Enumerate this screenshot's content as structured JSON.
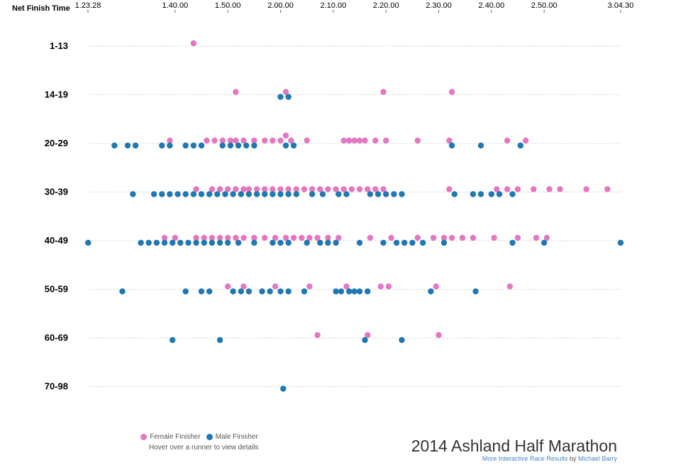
{
  "chart_data": {
    "type": "scatter",
    "title": "2014 Ashland Half Marathon",
    "xlabel": "Net Finish Time",
    "x_ticks": [
      {
        "label": "1.23.28",
        "value": 83.47
      },
      {
        "label": "1.40.00",
        "value": 100
      },
      {
        "label": "1.50.00",
        "value": 110
      },
      {
        "label": "2.00.00",
        "value": 120
      },
      {
        "label": "2.10.00",
        "value": 130
      },
      {
        "label": "2.20.00",
        "value": 140
      },
      {
        "label": "2.30.00",
        "value": 150
      },
      {
        "label": "2.40.00",
        "value": 160
      },
      {
        "label": "2.50.00",
        "value": 170
      },
      {
        "label": "3.04.30",
        "value": 184.5
      }
    ],
    "x_unit": "minutes",
    "xlim": [
      83.47,
      184.5
    ],
    "categories": [
      "1-13",
      "14-19",
      "20-29",
      "30-39",
      "40-49",
      "50-59",
      "60-69",
      "70-98"
    ],
    "series": [
      {
        "name": "Female Finisher",
        "color": "#e377c2",
        "points": [
          {
            "group": "1-13",
            "x": 103.5
          },
          {
            "group": "14-19",
            "x": 111.5
          },
          {
            "group": "14-19",
            "x": 121
          },
          {
            "group": "14-19",
            "x": 139.5
          },
          {
            "group": "14-19",
            "x": 152.5
          },
          {
            "group": "20-29",
            "x": 99
          },
          {
            "group": "20-29",
            "x": 106
          },
          {
            "group": "20-29",
            "x": 107.5
          },
          {
            "group": "20-29",
            "x": 109
          },
          {
            "group": "20-29",
            "x": 110.5
          },
          {
            "group": "20-29",
            "x": 111.5
          },
          {
            "group": "20-29",
            "x": 113
          },
          {
            "group": "20-29",
            "x": 115
          },
          {
            "group": "20-29",
            "x": 117
          },
          {
            "group": "20-29",
            "x": 118.5
          },
          {
            "group": "20-29",
            "x": 120
          },
          {
            "group": "20-29",
            "x": 121
          },
          {
            "group": "20-29",
            "x": 122
          },
          {
            "group": "20-29",
            "x": 125
          },
          {
            "group": "20-29",
            "x": 132
          },
          {
            "group": "20-29",
            "x": 133
          },
          {
            "group": "20-29",
            "x": 134
          },
          {
            "group": "20-29",
            "x": 135
          },
          {
            "group": "20-29",
            "x": 136
          },
          {
            "group": "20-29",
            "x": 138
          },
          {
            "group": "20-29",
            "x": 140
          },
          {
            "group": "20-29",
            "x": 146
          },
          {
            "group": "20-29",
            "x": 152
          },
          {
            "group": "20-29",
            "x": 163
          },
          {
            "group": "20-29",
            "x": 166.5
          },
          {
            "group": "30-39",
            "x": 104
          },
          {
            "group": "30-39",
            "x": 107
          },
          {
            "group": "30-39",
            "x": 108.5
          },
          {
            "group": "30-39",
            "x": 110
          },
          {
            "group": "30-39",
            "x": 111.5
          },
          {
            "group": "30-39",
            "x": 113
          },
          {
            "group": "30-39",
            "x": 114
          },
          {
            "group": "30-39",
            "x": 115.5
          },
          {
            "group": "30-39",
            "x": 117
          },
          {
            "group": "30-39",
            "x": 118.5
          },
          {
            "group": "30-39",
            "x": 120
          },
          {
            "group": "30-39",
            "x": 121.5
          },
          {
            "group": "30-39",
            "x": 123
          },
          {
            "group": "30-39",
            "x": 124.5
          },
          {
            "group": "30-39",
            "x": 126
          },
          {
            "group": "30-39",
            "x": 127.5
          },
          {
            "group": "30-39",
            "x": 129
          },
          {
            "group": "30-39",
            "x": 130.5
          },
          {
            "group": "30-39",
            "x": 132
          },
          {
            "group": "30-39",
            "x": 133.5
          },
          {
            "group": "30-39",
            "x": 135
          },
          {
            "group": "30-39",
            "x": 136.5
          },
          {
            "group": "30-39",
            "x": 138
          },
          {
            "group": "30-39",
            "x": 139.5
          },
          {
            "group": "30-39",
            "x": 152
          },
          {
            "group": "30-39",
            "x": 161
          },
          {
            "group": "30-39",
            "x": 163
          },
          {
            "group": "30-39",
            "x": 165
          },
          {
            "group": "30-39",
            "x": 168
          },
          {
            "group": "30-39",
            "x": 171
          },
          {
            "group": "30-39",
            "x": 173
          },
          {
            "group": "30-39",
            "x": 178
          },
          {
            "group": "30-39",
            "x": 182
          },
          {
            "group": "40-49",
            "x": 98
          },
          {
            "group": "40-49",
            "x": 100
          },
          {
            "group": "40-49",
            "x": 104
          },
          {
            "group": "40-49",
            "x": 105.5
          },
          {
            "group": "40-49",
            "x": 107
          },
          {
            "group": "40-49",
            "x": 108.5
          },
          {
            "group": "40-49",
            "x": 110
          },
          {
            "group": "40-49",
            "x": 111.5
          },
          {
            "group": "40-49",
            "x": 113
          },
          {
            "group": "40-49",
            "x": 115
          },
          {
            "group": "40-49",
            "x": 117
          },
          {
            "group": "40-49",
            "x": 119
          },
          {
            "group": "40-49",
            "x": 121
          },
          {
            "group": "40-49",
            "x": 122.5
          },
          {
            "group": "40-49",
            "x": 124
          },
          {
            "group": "40-49",
            "x": 125.5
          },
          {
            "group": "40-49",
            "x": 127
          },
          {
            "group": "40-49",
            "x": 129
          },
          {
            "group": "40-49",
            "x": 131
          },
          {
            "group": "40-49",
            "x": 137
          },
          {
            "group": "40-49",
            "x": 141
          },
          {
            "group": "40-49",
            "x": 146
          },
          {
            "group": "40-49",
            "x": 149
          },
          {
            "group": "40-49",
            "x": 151
          },
          {
            "group": "40-49",
            "x": 152.5
          },
          {
            "group": "40-49",
            "x": 154.5
          },
          {
            "group": "40-49",
            "x": 156.5
          },
          {
            "group": "40-49",
            "x": 160.5
          },
          {
            "group": "40-49",
            "x": 165
          },
          {
            "group": "40-49",
            "x": 168.5
          },
          {
            "group": "40-49",
            "x": 170.5
          },
          {
            "group": "50-59",
            "x": 110
          },
          {
            "group": "50-59",
            "x": 113
          },
          {
            "group": "50-59",
            "x": 119
          },
          {
            "group": "50-59",
            "x": 125.5
          },
          {
            "group": "50-59",
            "x": 132.5
          },
          {
            "group": "50-59",
            "x": 139
          },
          {
            "group": "50-59",
            "x": 140.5
          },
          {
            "group": "50-59",
            "x": 149.5
          },
          {
            "group": "50-59",
            "x": 163.5
          },
          {
            "group": "60-69",
            "x": 127
          },
          {
            "group": "60-69",
            "x": 136.5
          },
          {
            "group": "60-69",
            "x": 150
          }
        ]
      },
      {
        "name": "Male Finisher",
        "color": "#1f77b4",
        "points": [
          {
            "group": "14-19",
            "x": 120
          },
          {
            "group": "14-19",
            "x": 121.5
          },
          {
            "group": "20-29",
            "x": 88.5
          },
          {
            "group": "20-29",
            "x": 91
          },
          {
            "group": "20-29",
            "x": 92.5
          },
          {
            "group": "20-29",
            "x": 97.5
          },
          {
            "group": "20-29",
            "x": 99
          },
          {
            "group": "20-29",
            "x": 102
          },
          {
            "group": "20-29",
            "x": 103.5
          },
          {
            "group": "20-29",
            "x": 105
          },
          {
            "group": "20-29",
            "x": 109
          },
          {
            "group": "20-29",
            "x": 110.5
          },
          {
            "group": "20-29",
            "x": 112
          },
          {
            "group": "20-29",
            "x": 113.5
          },
          {
            "group": "20-29",
            "x": 115
          },
          {
            "group": "20-29",
            "x": 121
          },
          {
            "group": "20-29",
            "x": 122.5
          },
          {
            "group": "20-29",
            "x": 152.5
          },
          {
            "group": "20-29",
            "x": 158
          },
          {
            "group": "20-29",
            "x": 165.5
          },
          {
            "group": "30-39",
            "x": 92
          },
          {
            "group": "30-39",
            "x": 96
          },
          {
            "group": "30-39",
            "x": 97.5
          },
          {
            "group": "30-39",
            "x": 99
          },
          {
            "group": "30-39",
            "x": 100.5
          },
          {
            "group": "30-39",
            "x": 102
          },
          {
            "group": "30-39",
            "x": 103.5
          },
          {
            "group": "30-39",
            "x": 105
          },
          {
            "group": "30-39",
            "x": 106.5
          },
          {
            "group": "30-39",
            "x": 108
          },
          {
            "group": "30-39",
            "x": 109.5
          },
          {
            "group": "30-39",
            "x": 111
          },
          {
            "group": "30-39",
            "x": 112.5
          },
          {
            "group": "30-39",
            "x": 114
          },
          {
            "group": "30-39",
            "x": 115.5
          },
          {
            "group": "30-39",
            "x": 117
          },
          {
            "group": "30-39",
            "x": 118.5
          },
          {
            "group": "30-39",
            "x": 120
          },
          {
            "group": "30-39",
            "x": 121.5
          },
          {
            "group": "30-39",
            "x": 123
          },
          {
            "group": "30-39",
            "x": 126
          },
          {
            "group": "30-39",
            "x": 128
          },
          {
            "group": "30-39",
            "x": 131
          },
          {
            "group": "30-39",
            "x": 132.5
          },
          {
            "group": "30-39",
            "x": 137
          },
          {
            "group": "30-39",
            "x": 138.5
          },
          {
            "group": "30-39",
            "x": 140
          },
          {
            "group": "30-39",
            "x": 141.5
          },
          {
            "group": "30-39",
            "x": 143
          },
          {
            "group": "30-39",
            "x": 153
          },
          {
            "group": "30-39",
            "x": 156.5
          },
          {
            "group": "30-39",
            "x": 158
          },
          {
            "group": "30-39",
            "x": 160
          },
          {
            "group": "30-39",
            "x": 161.5
          },
          {
            "group": "30-39",
            "x": 164
          },
          {
            "group": "40-49",
            "x": 83.5
          },
          {
            "group": "40-49",
            "x": 93.5
          },
          {
            "group": "40-49",
            "x": 95
          },
          {
            "group": "40-49",
            "x": 96.5
          },
          {
            "group": "40-49",
            "x": 98
          },
          {
            "group": "40-49",
            "x": 99.5
          },
          {
            "group": "40-49",
            "x": 101
          },
          {
            "group": "40-49",
            "x": 102.5
          },
          {
            "group": "40-49",
            "x": 104
          },
          {
            "group": "40-49",
            "x": 105.5
          },
          {
            "group": "40-49",
            "x": 107
          },
          {
            "group": "40-49",
            "x": 108.5
          },
          {
            "group": "40-49",
            "x": 110
          },
          {
            "group": "40-49",
            "x": 112
          },
          {
            "group": "40-49",
            "x": 115
          },
          {
            "group": "40-49",
            "x": 118.5
          },
          {
            "group": "40-49",
            "x": 120
          },
          {
            "group": "40-49",
            "x": 121.5
          },
          {
            "group": "40-49",
            "x": 125
          },
          {
            "group": "40-49",
            "x": 127.5
          },
          {
            "group": "40-49",
            "x": 129
          },
          {
            "group": "40-49",
            "x": 130.5
          },
          {
            "group": "40-49",
            "x": 135
          },
          {
            "group": "40-49",
            "x": 139.5
          },
          {
            "group": "40-49",
            "x": 142
          },
          {
            "group": "40-49",
            "x": 143.5
          },
          {
            "group": "40-49",
            "x": 145
          },
          {
            "group": "40-49",
            "x": 147
          },
          {
            "group": "40-49",
            "x": 151
          },
          {
            "group": "40-49",
            "x": 164
          },
          {
            "group": "40-49",
            "x": 170
          },
          {
            "group": "40-49",
            "x": 184.5
          },
          {
            "group": "50-59",
            "x": 90
          },
          {
            "group": "50-59",
            "x": 102
          },
          {
            "group": "50-59",
            "x": 105
          },
          {
            "group": "50-59",
            "x": 106.5
          },
          {
            "group": "50-59",
            "x": 111
          },
          {
            "group": "50-59",
            "x": 112.5
          },
          {
            "group": "50-59",
            "x": 114
          },
          {
            "group": "50-59",
            "x": 116.5
          },
          {
            "group": "50-59",
            "x": 118
          },
          {
            "group": "50-59",
            "x": 120
          },
          {
            "group": "50-59",
            "x": 121.5
          },
          {
            "group": "50-59",
            "x": 124.5
          },
          {
            "group": "50-59",
            "x": 130.5
          },
          {
            "group": "50-59",
            "x": 131.5
          },
          {
            "group": "50-59",
            "x": 133
          },
          {
            "group": "50-59",
            "x": 134
          },
          {
            "group": "50-59",
            "x": 135
          },
          {
            "group": "50-59",
            "x": 136.5
          },
          {
            "group": "50-59",
            "x": 148.5
          },
          {
            "group": "50-59",
            "x": 157
          },
          {
            "group": "60-69",
            "x": 99.5
          },
          {
            "group": "60-69",
            "x": 108.5
          },
          {
            "group": "60-69",
            "x": 136
          },
          {
            "group": "60-69",
            "x": 143
          },
          {
            "group": "70-98",
            "x": 120.5
          }
        ]
      }
    ],
    "legend_position": "bottom-left",
    "grid": "dotted horizontal lines per age group"
  },
  "legend": {
    "female_label": "Female Finisher",
    "male_label": "Male Finisher",
    "hint": "Hover over a runner to view details"
  },
  "footer": {
    "title": "2014 Ashland Half Marathon",
    "link_text": "More Interactive Race Results",
    "by_text": "by",
    "author": "Michael Barry"
  }
}
